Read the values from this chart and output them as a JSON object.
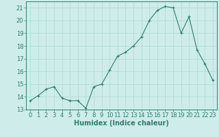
{
  "x": [
    0,
    1,
    2,
    3,
    4,
    5,
    6,
    7,
    8,
    9,
    10,
    11,
    12,
    13,
    14,
    15,
    16,
    17,
    18,
    19,
    20,
    21,
    22,
    23
  ],
  "y": [
    13.7,
    14.1,
    14.6,
    14.8,
    13.9,
    13.7,
    13.7,
    13.1,
    14.8,
    15.0,
    16.1,
    17.2,
    17.5,
    18.0,
    18.7,
    20.0,
    20.8,
    21.1,
    21.0,
    19.0,
    20.3,
    17.7,
    16.6,
    15.3
  ],
  "line_color": "#2e7d6e",
  "marker": "+",
  "marker_size": 3,
  "bg_color": "#cdecea",
  "grid_color": "#b0d8d4",
  "xlabel": "Humidex (Indice chaleur)",
  "ylim": [
    13,
    21.5
  ],
  "xlim": [
    -0.5,
    23.5
  ],
  "yticks": [
    13,
    14,
    15,
    16,
    17,
    18,
    19,
    20,
    21
  ],
  "xticks": [
    0,
    1,
    2,
    3,
    4,
    5,
    6,
    7,
    8,
    9,
    10,
    11,
    12,
    13,
    14,
    15,
    16,
    17,
    18,
    19,
    20,
    21,
    22,
    23
  ],
  "tick_color": "#2e7d6e",
  "label_color": "#2e7d6e",
  "spine_color": "#2e7d6e",
  "font_size": 6,
  "xlabel_fontsize": 7,
  "linewidth": 0.8,
  "markeredgewidth": 0.8
}
